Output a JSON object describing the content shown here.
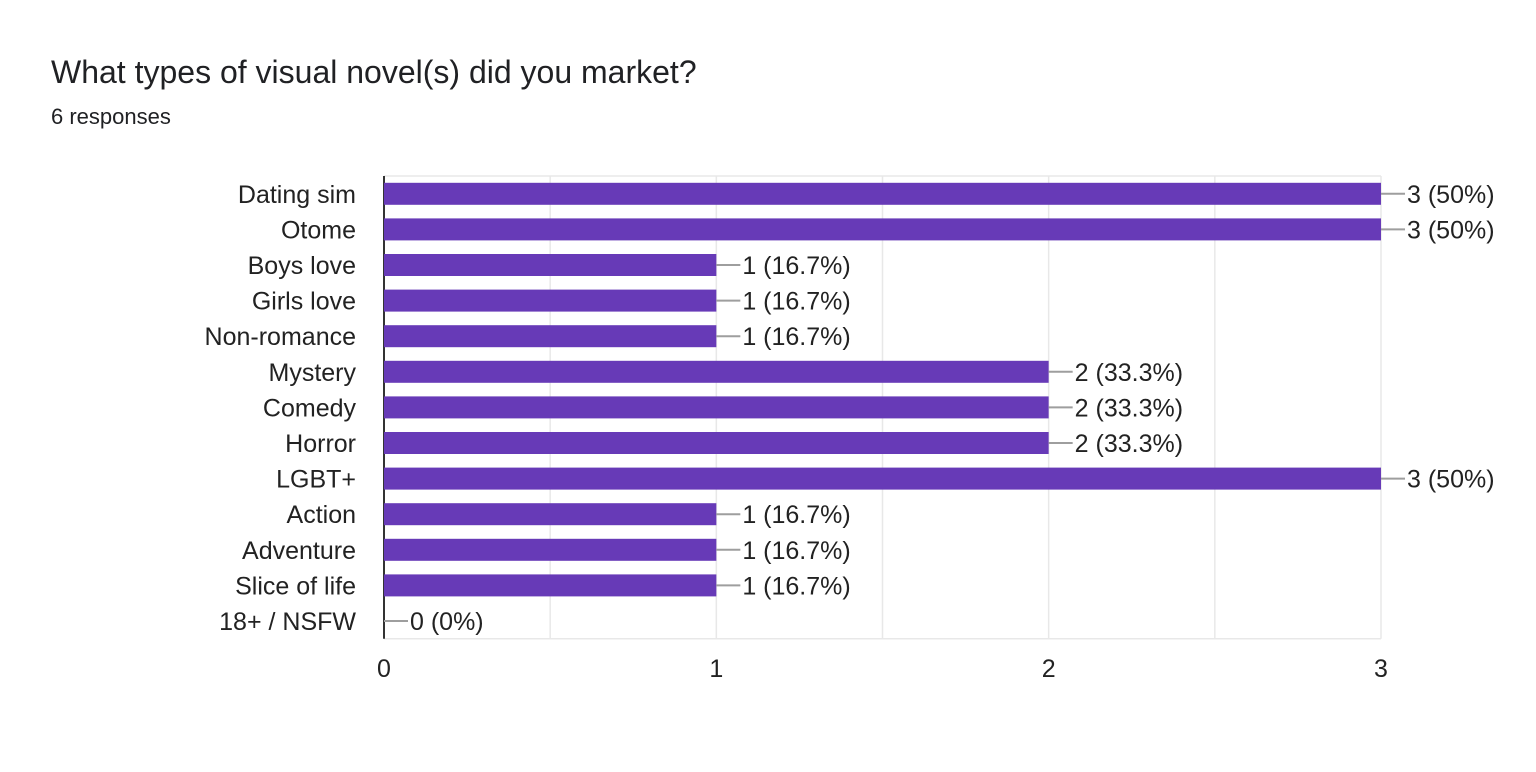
{
  "header": {
    "title": "What types of visual novel(s) did you market?",
    "subtitle": "6 responses"
  },
  "chart_data": {
    "type": "bar",
    "orientation": "horizontal",
    "title": "",
    "xlabel": "",
    "ylabel": "",
    "categories": [
      "Dating sim",
      "Otome",
      "Boys love",
      "Girls love",
      "Non-romance",
      "Mystery",
      "Comedy",
      "Horror",
      "LGBT+",
      "Action",
      "Adventure",
      "Slice of life",
      "18+ / NSFW"
    ],
    "values": [
      3,
      3,
      1,
      1,
      1,
      2,
      2,
      2,
      3,
      1,
      1,
      1,
      0
    ],
    "data_labels": [
      "3 (50%)",
      "3 (50%)",
      "1 (16.7%)",
      "1 (16.7%)",
      "1 (16.7%)",
      "2 (33.3%)",
      "2 (33.3%)",
      "2 (33.3%)",
      "3 (50%)",
      "1 (16.7%)",
      "1 (16.7%)",
      "1 (16.7%)",
      "0 (0%)"
    ],
    "xlim": [
      0,
      3
    ],
    "xticks": [
      "0",
      "1",
      "2",
      "3"
    ],
    "grid": true,
    "bar_color": "#673ab7"
  }
}
